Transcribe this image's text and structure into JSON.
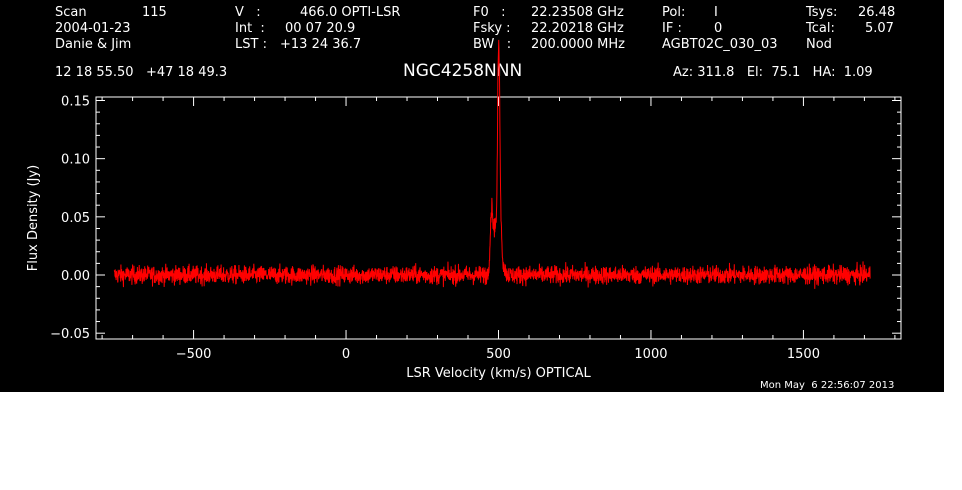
{
  "header": {
    "col1": [
      "Scan",
      "2004-01-23",
      "Danie & Jim"
    ],
    "scan_number": "115",
    "col2": [
      "V   :",
      "Int  :",
      "LST :"
    ],
    "col2_values": [
      "466.0 OPTI-LSR",
      "00 07 20.9",
      "+13 24 36.7"
    ],
    "col3": [
      "F0   :",
      "Fsky :",
      "BW   :"
    ],
    "col3_values": [
      "22.23508 GHz",
      "22.20218 GHz",
      "200.0000 MHz"
    ],
    "col4": [
      "Pol:",
      "IF :",
      "AGBT02C_030_03"
    ],
    "col4_values": [
      "I",
      "0",
      ""
    ],
    "col5": [
      "Tsys:",
      "Tcal:",
      "Nod"
    ],
    "col5_values": [
      "26.48",
      "5.07",
      ""
    ],
    "coords": "12 18 55.50   +47 18 49.3",
    "source": "NGC4258NNN",
    "azelha": "Az: 311.8   El:  75.1   HA:  1.09"
  },
  "timestamp": "Mon May  6 22:56:07 2013",
  "colors": {
    "background": "#000000",
    "axes": "#ffffff",
    "series": "#ff0000"
  },
  "chart_data": {
    "type": "line",
    "title": "NGC4258NNN",
    "xlabel": "LSR Velocity (km/s) OPTICAL",
    "ylabel": "Flux Density (Jy)",
    "xlim": [
      -820,
      1820
    ],
    "ylim": [
      -0.055,
      0.153
    ],
    "xticks": [
      -500,
      0,
      500,
      1000,
      1500
    ],
    "xtick_labels": [
      "−500",
      "0",
      "500",
      "1000",
      "1500"
    ],
    "yticks": [
      -0.05,
      0.0,
      0.05,
      0.1,
      0.15
    ],
    "ytick_labels": [
      "−0.05",
      "0.00",
      "0.05",
      "0.10",
      "0.15"
    ],
    "grid": false,
    "series": [
      {
        "x_range": [
          -760,
          1720
        ],
        "noise_rms": 0.004,
        "baseline": 0.0,
        "features": [
          {
            "x": 478,
            "y": 0.058,
            "width": 5
          },
          {
            "x": 490,
            "y": 0.04,
            "width": 4
          },
          {
            "x": 499,
            "y": 0.138,
            "width": 3
          },
          {
            "x": 503,
            "y": 0.1,
            "width": 3
          },
          {
            "x": 508,
            "y": 0.028,
            "width": 4
          },
          {
            "x": 516,
            "y": 0.006,
            "width": 6
          }
        ]
      }
    ]
  }
}
